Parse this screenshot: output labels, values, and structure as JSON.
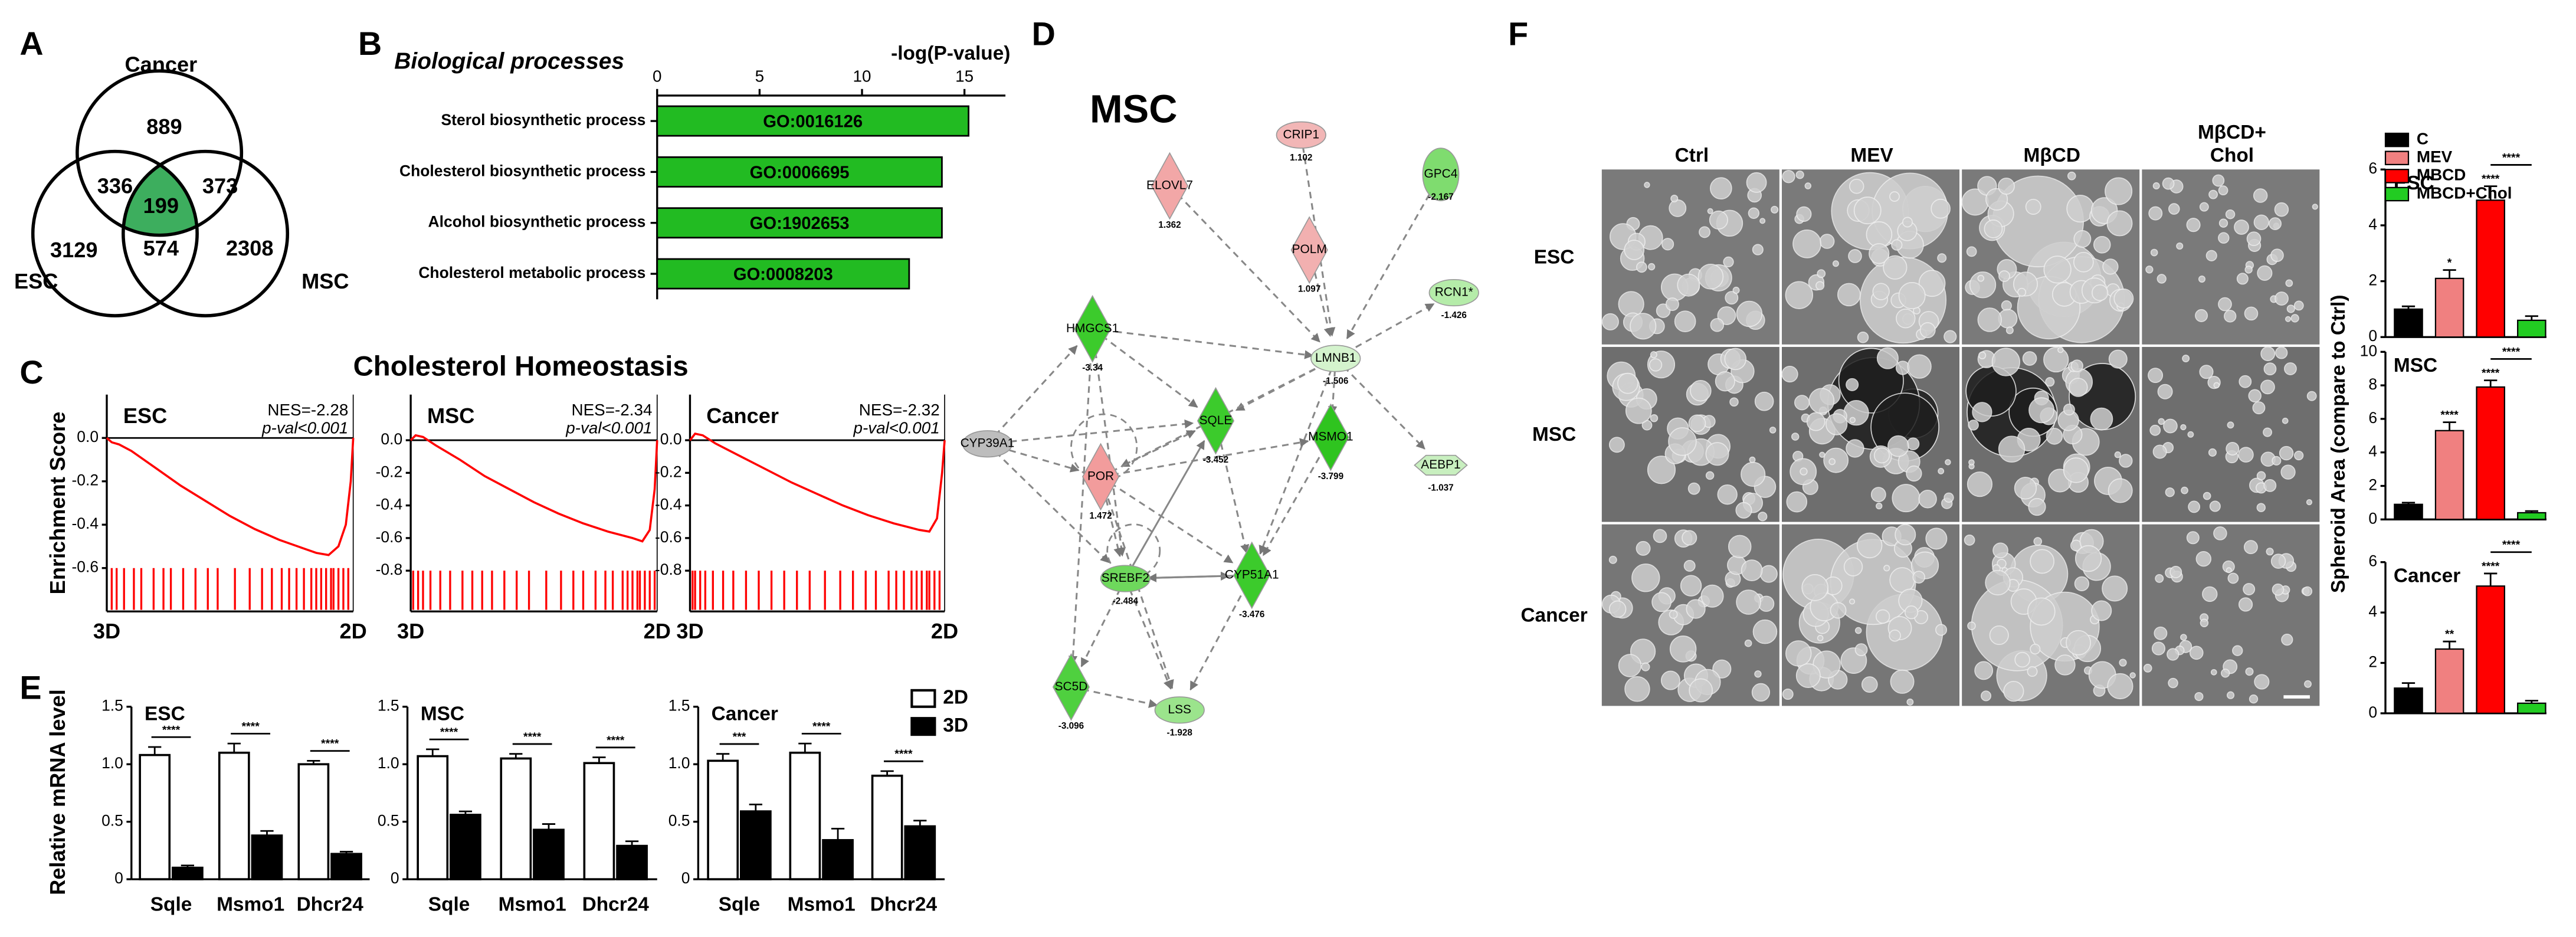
{
  "panel_labels": [
    "A",
    "B",
    "C",
    "D",
    "E",
    "F"
  ],
  "gsea_title": "Cholesterol Homeostasis",
  "network": {
    "title": "MSC",
    "nodes": [
      {
        "label": "ELOVL7",
        "value": "1.362",
        "color": "#f2a7a7"
      },
      {
        "label": "CRIP1",
        "value": "1.102",
        "color": "#f2b6b6"
      },
      {
        "label": "GPC4",
        "value": "-2.167",
        "color": "#7fdc6f"
      },
      {
        "label": "POLM",
        "value": "1.097",
        "color": "#f2b0b0"
      },
      {
        "label": "RCN1*",
        "value": "-1.426",
        "color": "#b5eca9"
      },
      {
        "label": "HMGCS1",
        "value": "-3.34",
        "color": "#3ccb2c"
      },
      {
        "label": "LMNB1",
        "value": "-1.506",
        "color": "#d4f3cd"
      },
      {
        "label": "CYP39A1",
        "color": "#bdbdbd"
      },
      {
        "label": "SQLE",
        "value": "-3.452",
        "color": "#3ccb2c"
      },
      {
        "label": "POR",
        "value": "1.472",
        "color": "#f29c9c"
      },
      {
        "label": "MSMO1",
        "value": "-3.799",
        "color": "#2fc41f"
      },
      {
        "label": "AEBP1",
        "value": "-1.037",
        "color": "#c8efbf"
      },
      {
        "label": "SREBF2",
        "value": "-2.484",
        "color": "#6ed85c"
      },
      {
        "label": "CYP51A1",
        "value": "-3.476",
        "color": "#3ccb2c"
      },
      {
        "label": "SC5D",
        "value": "-3.096",
        "color": "#4fd03f"
      },
      {
        "label": "LSS",
        "value": "-1.928",
        "color": "#9be48c"
      }
    ]
  },
  "images": {
    "columns": [
      [
        "Ctrl"
      ],
      [
        "MEV"
      ],
      [
        "MβCD"
      ],
      [
        "MβCD+",
        "Chol"
      ]
    ],
    "rows": [
      "ESC",
      "MSC",
      "Cancer"
    ]
  },
  "chart_data": [
    {
      "type": "venn",
      "sets": [
        "Cancer",
        "ESC",
        "MSC"
      ],
      "regions": [
        {
          "sets": [
            0
          ],
          "value": 889
        },
        {
          "sets": [
            0,
            1
          ],
          "value": 336
        },
        {
          "sets": [
            0,
            2
          ],
          "value": 373
        },
        {
          "sets": [
            0,
            1,
            2
          ],
          "value": 199,
          "color": "#3dae5e"
        },
        {
          "sets": [
            1
          ],
          "value": 3129
        },
        {
          "sets": [
            1,
            2
          ],
          "value": 574
        },
        {
          "sets": [
            2
          ],
          "value": 2308
        }
      ]
    },
    {
      "type": "bar",
      "orientation": "horizontal",
      "title": "Biological processes",
      "xlabel": "-log(P-value)",
      "categories": [
        "Sterol biosynthetic process",
        "Cholesterol biosynthetic process",
        "Alcohol biosynthetic process",
        "Cholesterol metabolic process"
      ],
      "values": [
        15.2,
        13.9,
        13.9,
        12.3
      ],
      "bar_labels": [
        "GO:0016126",
        "GO:0006695",
        "GO:1902653",
        "GO:0008203"
      ],
      "color": "#22bb22",
      "xlim": [
        0,
        17
      ],
      "xticks": [
        0,
        5,
        10,
        15
      ]
    },
    {
      "type": "line",
      "title": "ESC",
      "annotations": [
        "NES=-2.28",
        "p-val<0.001"
      ],
      "ylabel": "Enrichment Score",
      "x_end_labels": [
        "3D",
        "2D"
      ],
      "x": [
        0,
        2,
        5,
        10,
        20,
        30,
        40,
        50,
        60,
        70,
        80,
        85,
        90,
        94,
        97,
        99,
        100
      ],
      "values": [
        0,
        -0.02,
        -0.03,
        -0.06,
        -0.14,
        -0.22,
        -0.29,
        -0.36,
        -0.42,
        -0.47,
        -0.51,
        -0.53,
        -0.54,
        -0.5,
        -0.4,
        -0.2,
        0
      ],
      "hits": [
        2,
        4,
        7,
        11,
        14,
        19,
        23,
        26,
        31,
        36,
        41,
        45,
        52,
        58,
        63,
        67,
        71,
        74,
        77,
        80,
        83,
        85,
        87,
        89,
        91,
        92,
        94,
        96,
        98
      ],
      "color": "#ff0000",
      "xlim": [
        0,
        100
      ],
      "ylim": [
        -0.8,
        0.2
      ],
      "yticks": [
        {
          "value": 0,
          "label": "0.0"
        },
        -0.2,
        -0.4,
        -0.6
      ]
    },
    {
      "type": "line",
      "title": "MSC",
      "annotations": [
        "NES=-2.34",
        "p-val<0.001"
      ],
      "x_end_labels": [
        "3D",
        "2D"
      ],
      "x": [
        0,
        2,
        5,
        10,
        20,
        30,
        40,
        50,
        60,
        70,
        80,
        85,
        90,
        94,
        97,
        99,
        100
      ],
      "values": [
        0,
        0.03,
        0.02,
        -0.03,
        -0.12,
        -0.22,
        -0.3,
        -0.38,
        -0.45,
        -0.51,
        -0.56,
        -0.58,
        -0.6,
        -0.62,
        -0.55,
        -0.3,
        0
      ],
      "hits": [
        1,
        3,
        5,
        8,
        12,
        16,
        21,
        25,
        29,
        33,
        38,
        43,
        48,
        55,
        61,
        66,
        70,
        75,
        79,
        82,
        86,
        88,
        90,
        92,
        93,
        95,
        97,
        99
      ],
      "color": "#ff0000",
      "xlim": [
        0,
        100
      ],
      "ylim": [
        -1.05,
        0.28
      ],
      "yticks": [
        {
          "value": 0,
          "label": "0.0"
        },
        -0.2,
        -0.4,
        -0.6,
        -0.8
      ]
    },
    {
      "type": "line",
      "title": "Cancer",
      "annotations": [
        "NES=-2.32",
        "p-val<0.001"
      ],
      "x_end_labels": [
        "3D",
        "2D"
      ],
      "x": [
        0,
        2,
        5,
        10,
        20,
        30,
        40,
        50,
        60,
        70,
        80,
        85,
        90,
        94,
        97,
        99,
        100
      ],
      "values": [
        0,
        0.04,
        0.03,
        -0.02,
        -0.1,
        -0.18,
        -0.26,
        -0.33,
        -0.4,
        -0.46,
        -0.51,
        -0.53,
        -0.55,
        -0.56,
        -0.48,
        -0.2,
        0
      ],
      "hits": [
        1,
        2,
        4,
        6,
        9,
        13,
        17,
        22,
        27,
        32,
        37,
        42,
        47,
        53,
        59,
        64,
        69,
        73,
        78,
        81,
        84,
        87,
        89,
        91,
        93,
        94,
        96,
        98
      ],
      "color": "#ff0000",
      "xlim": [
        0,
        100
      ],
      "ylim": [
        -1.05,
        0.28
      ],
      "yticks": [
        {
          "value": 0,
          "label": "0.0"
        },
        -0.2,
        -0.4,
        -0.6,
        -0.8
      ]
    },
    {
      "type": "bar",
      "title": "ESC",
      "ylabel": "Relative mRNA level",
      "categories": [
        "Sqle",
        "Msmo1",
        "Dhcr24"
      ],
      "series": [
        {
          "name": "2D",
          "color": "#ffffff",
          "values": [
            1.08,
            1.1,
            1.0
          ],
          "errors": [
            0.07,
            0.08,
            0.03
          ]
        },
        {
          "name": "3D",
          "color": "#000000",
          "values": [
            0.1,
            0.38,
            0.22
          ],
          "errors": [
            0.02,
            0.04,
            0.02
          ]
        }
      ],
      "significance": [
        "****",
        "****",
        "****"
      ],
      "ylim": [
        0,
        1.5
      ],
      "yticks": [
        0,
        0.5,
        {
          "value": 1,
          "label": "1.0"
        },
        1.5
      ]
    },
    {
      "type": "bar",
      "title": "MSC",
      "categories": [
        "Sqle",
        "Msmo1",
        "Dhcr24"
      ],
      "series": [
        {
          "color": "#ffffff",
          "values": [
            1.07,
            1.05,
            1.01
          ],
          "errors": [
            0.06,
            0.04,
            0.05
          ]
        },
        {
          "color": "#000000",
          "values": [
            0.56,
            0.43,
            0.29
          ],
          "errors": [
            0.03,
            0.05,
            0.04
          ]
        }
      ],
      "significance": [
        "****",
        "****",
        "****"
      ],
      "ylim": [
        0,
        1.5
      ],
      "yticks": [
        0,
        0.5,
        {
          "value": 1,
          "label": "1.0"
        },
        1.5
      ]
    },
    {
      "type": "bar",
      "title": "Cancer",
      "categories": [
        "Sqle",
        "Msmo1",
        "Dhcr24"
      ],
      "series": [
        {
          "color": "#ffffff",
          "values": [
            1.03,
            1.1,
            0.9
          ],
          "errors": [
            0.06,
            0.08,
            0.04
          ]
        },
        {
          "color": "#000000",
          "values": [
            0.59,
            0.34,
            0.46
          ],
          "errors": [
            0.06,
            0.1,
            0.05
          ]
        }
      ],
      "significance": [
        "***",
        "****",
        "****"
      ],
      "ylim": [
        0,
        1.5
      ],
      "yticks": [
        0,
        0.5,
        {
          "value": 1,
          "label": "1.0"
        },
        1.5
      ]
    },
    {
      "type": "bar",
      "title": "ESC",
      "ylabel": "Spheroid Area (compare to Ctrl)",
      "series_names": [
        "C",
        "MEV",
        "MBCD",
        "MBCD+Chol"
      ],
      "colors": [
        "#000000",
        "#f08080",
        "#ff0000",
        "#22cc22"
      ],
      "values": [
        1,
        2.1,
        4.9,
        0.6
      ],
      "errors": [
        0.1,
        0.3,
        0.5,
        0.15
      ],
      "significance": [
        null,
        "*",
        "****",
        null
      ],
      "bracket": "****",
      "ylim": [
        0,
        6
      ],
      "yticks": [
        0,
        2,
        4,
        6
      ]
    },
    {
      "type": "bar",
      "title": "MSC",
      "colors": [
        "#000000",
        "#f08080",
        "#ff0000",
        "#22cc22"
      ],
      "values": [
        0.9,
        5.3,
        7.9,
        0.4
      ],
      "errors": [
        0.1,
        0.5,
        0.4,
        0.1
      ],
      "significance": [
        null,
        "****",
        "****",
        null
      ],
      "bracket": "****",
      "ylim": [
        0,
        10
      ],
      "yticks": [
        0,
        2,
        4,
        6,
        8,
        10
      ]
    },
    {
      "type": "bar",
      "title": "Cancer",
      "colors": [
        "#000000",
        "#f08080",
        "#ff0000",
        "#22cc22"
      ],
      "values": [
        1,
        2.55,
        5.05,
        0.4
      ],
      "errors": [
        0.2,
        0.3,
        0.5,
        0.1
      ],
      "significance": [
        null,
        "**",
        "****",
        null
      ],
      "bracket": "****",
      "ylim": [
        0,
        6
      ],
      "yticks": [
        0,
        2,
        4,
        6
      ]
    }
  ]
}
